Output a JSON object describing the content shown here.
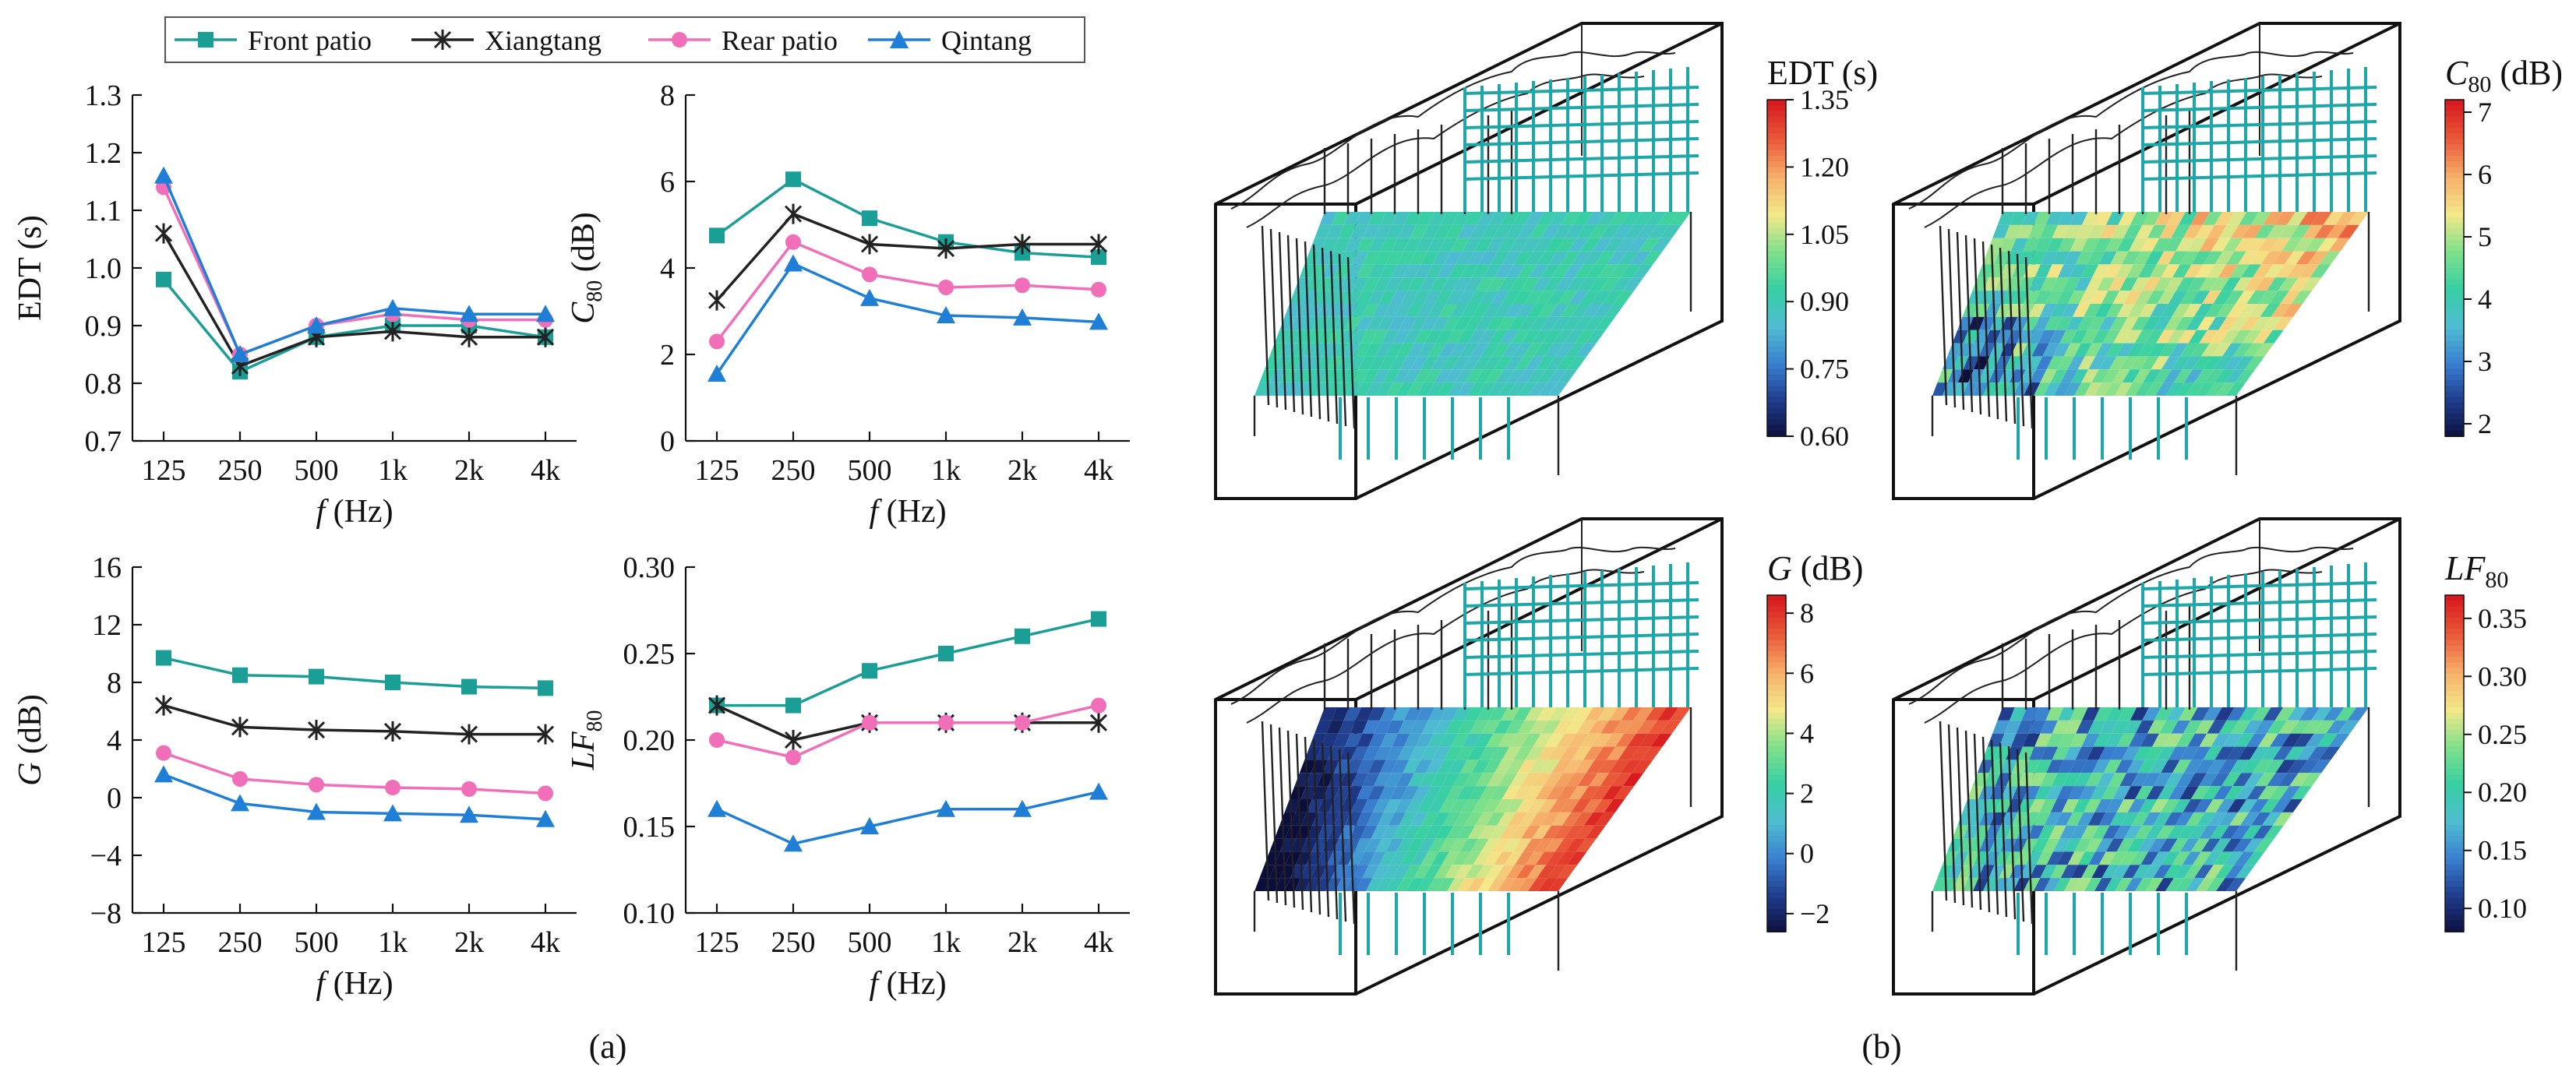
{
  "legend": [
    "Front patio",
    "Xiangtang",
    "Rear patio",
    "Qintang"
  ],
  "panel_labels": {
    "a": "(a)",
    "b": "(b)"
  },
  "chart_data": [
    {
      "type": "line",
      "x": [
        "125",
        "250",
        "500",
        "1k",
        "2k",
        "4k"
      ],
      "xlabel": "f (Hz)",
      "ylabel": "EDT (s)",
      "ylim": [
        0.7,
        1.3
      ],
      "yticks": [
        "0.7",
        "0.8",
        "0.9",
        "1.0",
        "1.1",
        "1.2",
        "1.3"
      ],
      "series": [
        {
          "name": "Front patio",
          "values": [
            0.98,
            0.82,
            0.88,
            0.9,
            0.9,
            0.88
          ]
        },
        {
          "name": "Xiangtang",
          "values": [
            1.06,
            0.83,
            0.88,
            0.89,
            0.88,
            0.88
          ]
        },
        {
          "name": "Rear patio",
          "values": [
            1.14,
            0.85,
            0.9,
            0.92,
            0.91,
            0.91
          ]
        },
        {
          "name": "Qintang",
          "values": [
            1.16,
            0.85,
            0.9,
            0.93,
            0.92,
            0.92
          ]
        }
      ]
    },
    {
      "type": "line",
      "x": [
        "125",
        "250",
        "500",
        "1k",
        "2k",
        "4k"
      ],
      "xlabel": "f (Hz)",
      "ylabel": "C80 (dB)",
      "ylim": [
        0,
        8
      ],
      "yticks": [
        "0",
        "2",
        "4",
        "6",
        "8"
      ],
      "series": [
        {
          "name": "Front patio",
          "values": [
            4.75,
            6.05,
            5.15,
            4.6,
            4.35,
            4.25
          ]
        },
        {
          "name": "Xiangtang",
          "values": [
            3.25,
            5.25,
            4.55,
            4.45,
            4.55,
            4.55
          ]
        },
        {
          "name": "Rear patio",
          "values": [
            2.3,
            4.6,
            3.85,
            3.55,
            3.6,
            3.5
          ]
        },
        {
          "name": "Qintang",
          "values": [
            1.55,
            4.1,
            3.3,
            2.9,
            2.85,
            2.75
          ]
        }
      ]
    },
    {
      "type": "line",
      "x": [
        "125",
        "250",
        "500",
        "1k",
        "2k",
        "4k"
      ],
      "xlabel": "f (Hz)",
      "ylabel": "G (dB)",
      "ylim": [
        -8,
        16
      ],
      "yticks": [
        "−8",
        "−4",
        "0",
        "4",
        "8",
        "12",
        "16"
      ],
      "series": [
        {
          "name": "Front patio",
          "values": [
            9.7,
            8.5,
            8.4,
            8.0,
            7.7,
            7.6
          ]
        },
        {
          "name": "Xiangtang",
          "values": [
            6.4,
            4.9,
            4.7,
            4.6,
            4.4,
            4.4
          ]
        },
        {
          "name": "Rear patio",
          "values": [
            3.1,
            1.3,
            0.9,
            0.7,
            0.6,
            0.3
          ]
        },
        {
          "name": "Qintang",
          "values": [
            1.6,
            -0.4,
            -1.0,
            -1.1,
            -1.2,
            -1.5
          ]
        }
      ]
    },
    {
      "type": "line",
      "x": [
        "125",
        "250",
        "500",
        "1k",
        "2k",
        "4k"
      ],
      "xlabel": "f (Hz)",
      "ylabel": "LF80",
      "ylim": [
        0.1,
        0.3
      ],
      "yticks": [
        "0.10",
        "0.15",
        "0.20",
        "0.25",
        "0.30"
      ],
      "series": [
        {
          "name": "Front patio",
          "values": [
            0.22,
            0.22,
            0.24,
            0.25,
            0.26,
            0.27
          ]
        },
        {
          "name": "Xiangtang",
          "values": [
            0.22,
            0.2,
            0.21,
            0.21,
            0.21,
            0.21
          ]
        },
        {
          "name": "Rear patio",
          "values": [
            0.2,
            0.19,
            0.21,
            0.21,
            0.21,
            0.22
          ]
        },
        {
          "name": "Qintang",
          "values": [
            0.16,
            0.14,
            0.15,
            0.16,
            0.16,
            0.17
          ]
        }
      ]
    },
    {
      "type": "heatmap",
      "title": "EDT (s)",
      "colorbar_ticks": [
        "1.35",
        "1.20",
        "1.05",
        "0.90",
        "0.75",
        "0.60"
      ],
      "range": [
        0.6,
        1.35
      ],
      "pattern": "uniform"
    },
    {
      "type": "heatmap",
      "title": "C80 (dB)",
      "colorbar_ticks": [
        "7",
        "6",
        "5",
        "4",
        "3",
        "2"
      ],
      "range": [
        1.8,
        7.2
      ],
      "pattern": "front-low"
    },
    {
      "type": "heatmap",
      "title": "G (dB)",
      "colorbar_ticks": [
        "8",
        "6",
        "4",
        "2",
        "0",
        "−2"
      ],
      "range": [
        -2.6,
        8.6
      ],
      "pattern": "gradient"
    },
    {
      "type": "heatmap",
      "title": "LF80",
      "colorbar_ticks": [
        "0.35",
        "0.30",
        "0.25",
        "0.20",
        "0.15",
        "0.10"
      ],
      "range": [
        0.08,
        0.37
      ],
      "pattern": "noisy"
    }
  ],
  "colors": {
    "front_patio": "#1a9e96",
    "xiangtang": "#222222",
    "rear_patio": "#f06fb8",
    "qintang": "#1f7fd6",
    "colormap": [
      "#0b0e3a",
      "#1f3a8a",
      "#3a7fd0",
      "#4fbcd2",
      "#37cfa3",
      "#7fe08a",
      "#f3e88a",
      "#f6b06a",
      "#ea5a3a",
      "#d8191e"
    ]
  }
}
